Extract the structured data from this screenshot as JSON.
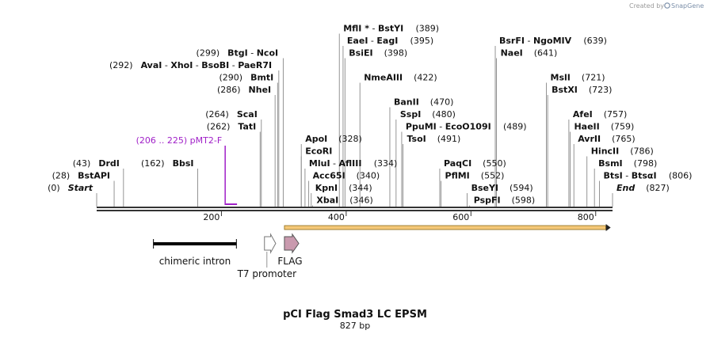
{
  "credit": {
    "prefix": "Created by",
    "brand": "SnapGene"
  },
  "map": {
    "title": "pCI Flag Smad3 LC EPSM",
    "length_label": "827 bp",
    "length": 827,
    "tick_labels": [
      "200",
      "400",
      "600",
      "800"
    ],
    "ticks": [
      200,
      400,
      600,
      800
    ]
  },
  "sites": [
    {
      "pos": 0,
      "row": 0,
      "number": "(0)",
      "names": [
        {
          "t": "Start",
          "s": "italic"
        }
      ],
      "numFirst": true
    },
    {
      "pos": 28,
      "row": 1,
      "number": "(28)",
      "names": [
        {
          "t": "BstAPI",
          "s": "bold"
        }
      ],
      "numFirst": true
    },
    {
      "pos": 43,
      "row": 2,
      "number": "(43)",
      "names": [
        {
          "t": "DrdI",
          "s": "bold"
        }
      ],
      "numFirst": true
    },
    {
      "pos": 162,
      "row": 2,
      "number": "(162)",
      "names": [
        {
          "t": "BbsI",
          "s": "bold"
        }
      ],
      "numFirst": true
    },
    {
      "pos": 262,
      "row": 5,
      "number": "(262)",
      "names": [
        {
          "t": "TatI",
          "s": "bold"
        }
      ],
      "numFirst": true
    },
    {
      "pos": 264,
      "row": 6,
      "number": "(264)",
      "names": [
        {
          "t": "ScaI",
          "s": "bold"
        }
      ],
      "numFirst": true
    },
    {
      "pos": 286,
      "row": 8,
      "number": "(286)",
      "names": [
        {
          "t": "NheI",
          "s": "bold"
        }
      ],
      "numFirst": true
    },
    {
      "pos": 290,
      "row": 9,
      "number": "(290)",
      "names": [
        {
          "t": "BmtI",
          "s": "bold"
        }
      ],
      "numFirst": true
    },
    {
      "pos": 292,
      "row": 10,
      "number": "(292)",
      "names": [
        {
          "t": "AvaI",
          "s": "bold"
        },
        {
          "t": "XhoI",
          "s": "bold"
        },
        {
          "t": "BsoBI",
          "s": "bold"
        },
        {
          "t": "PaeR7I",
          "s": "bold"
        }
      ],
      "numFirst": true
    },
    {
      "pos": 299,
      "row": 11,
      "number": "(299)",
      "names": [
        {
          "t": "BtgI",
          "s": "bold"
        },
        {
          "t": "NcoI",
          "s": "bold"
        }
      ],
      "numFirst": true
    },
    {
      "pos": 328,
      "row": 4,
      "number": "(328)",
      "names": [
        {
          "t": "ApoI",
          "s": "bold"
        }
      ],
      "numFirst": false
    },
    {
      "pos": 328,
      "row": 3,
      "number": "",
      "names": [
        {
          "t": "EcoRI",
          "s": "bold"
        }
      ],
      "numFirst": false
    },
    {
      "pos": 334,
      "row": 2,
      "number": "(334)",
      "names": [
        {
          "t": "MluI",
          "s": "bold"
        },
        {
          "t": "AflIII",
          "s": "bold"
        }
      ],
      "numFirst": false
    },
    {
      "pos": 340,
      "row": 1,
      "number": "(340)",
      "names": [
        {
          "t": "Acc65I",
          "s": "bold"
        }
      ],
      "numFirst": false
    },
    {
      "pos": 344,
      "row": 0,
      "number": "(344)",
      "names": [
        {
          "t": "KpnI",
          "s": "bold"
        }
      ],
      "numFirst": false
    },
    {
      "pos": 346,
      "row": -1,
      "number": "(346)",
      "names": [
        {
          "t": "XbaI",
          "s": "bold"
        }
      ],
      "numFirst": false
    },
    {
      "pos": 389,
      "row": 13,
      "number": "(389)",
      "names": [
        {
          "t": "MflI *",
          "s": "bold"
        },
        {
          "t": "BstYI",
          "s": "bold"
        }
      ],
      "numFirst": false
    },
    {
      "pos": 395,
      "row": 12,
      "number": "(395)",
      "names": [
        {
          "t": "EaeI",
          "s": "bold"
        },
        {
          "t": "EagI",
          "s": "bold"
        }
      ],
      "numFirst": false
    },
    {
      "pos": 398,
      "row": 11,
      "number": "(398)",
      "names": [
        {
          "t": "BsiEI",
          "s": "bold"
        }
      ],
      "numFirst": false
    },
    {
      "pos": 422,
      "row": 9,
      "number": "(422)",
      "names": [
        {
          "t": "NmeAIII",
          "s": "bold"
        }
      ],
      "numFirst": false
    },
    {
      "pos": 470,
      "row": 7,
      "number": "(470)",
      "names": [
        {
          "t": "BanII",
          "s": "bold"
        }
      ],
      "numFirst": false
    },
    {
      "pos": 480,
      "row": 6,
      "number": "(480)",
      "names": [
        {
          "t": "SspI",
          "s": "bold"
        }
      ],
      "numFirst": false
    },
    {
      "pos": 489,
      "row": 5,
      "number": "(489)",
      "names": [
        {
          "t": "PpuMI",
          "s": "bold"
        },
        {
          "t": "EcoO109I",
          "s": "bold"
        }
      ],
      "numFirst": false
    },
    {
      "pos": 491,
      "row": 4,
      "number": "(491)",
      "names": [
        {
          "t": "TsoI",
          "s": "bold"
        }
      ],
      "numFirst": false
    },
    {
      "pos": 550,
      "row": 2,
      "number": "(550)",
      "names": [
        {
          "t": "PaqCI",
          "s": "bold"
        }
      ],
      "numFirst": false
    },
    {
      "pos": 552,
      "row": 1,
      "number": "(552)",
      "names": [
        {
          "t": "PflMI",
          "s": "bold"
        }
      ],
      "numFirst": false
    },
    {
      "pos": 594,
      "row": 0,
      "number": "(594)",
      "names": [
        {
          "t": "BseYI",
          "s": "bold"
        }
      ],
      "numFirst": false
    },
    {
      "pos": 598,
      "row": -1,
      "number": "(598)",
      "names": [
        {
          "t": "PspFI",
          "s": "bold"
        }
      ],
      "numFirst": false
    },
    {
      "pos": 639,
      "row": 12,
      "number": "(639)",
      "names": [
        {
          "t": "BsrFI",
          "s": "bold"
        },
        {
          "t": "NgoMIV",
          "s": "bold"
        }
      ],
      "numFirst": false
    },
    {
      "pos": 641,
      "row": 11,
      "number": "(641)",
      "names": [
        {
          "t": "NaeI",
          "s": "bold"
        }
      ],
      "numFirst": false
    },
    {
      "pos": 721,
      "row": 9,
      "number": "(721)",
      "names": [
        {
          "t": "MslI",
          "s": "bold"
        }
      ],
      "numFirst": false
    },
    {
      "pos": 723,
      "row": 8,
      "number": "(723)",
      "names": [
        {
          "t": "BstXI",
          "s": "bold"
        }
      ],
      "numFirst": false
    },
    {
      "pos": 757,
      "row": 6,
      "number": "(757)",
      "names": [
        {
          "t": "AfeI",
          "s": "bold"
        }
      ],
      "numFirst": false
    },
    {
      "pos": 759,
      "row": 5,
      "number": "(759)",
      "names": [
        {
          "t": "HaeII",
          "s": "bold"
        }
      ],
      "numFirst": false
    },
    {
      "pos": 765,
      "row": 4,
      "number": "(765)",
      "names": [
        {
          "t": "AvrII",
          "s": "bold"
        }
      ],
      "numFirst": false
    },
    {
      "pos": 786,
      "row": 3,
      "number": "(786)",
      "names": [
        {
          "t": "HincII",
          "s": "bold"
        }
      ],
      "numFirst": false
    },
    {
      "pos": 798,
      "row": 2,
      "number": "(798)",
      "names": [
        {
          "t": "BsmI",
          "s": "bold"
        }
      ],
      "numFirst": false
    },
    {
      "pos": 806,
      "row": 1,
      "number": "(806)",
      "names": [
        {
          "t": "BtsI",
          "s": "bold"
        },
        {
          "t": "BtsαI",
          "s": "bold"
        }
      ],
      "numFirst": false
    },
    {
      "pos": 827,
      "row": 0,
      "number": "(827)",
      "names": [
        {
          "t": "End",
          "s": "italic"
        }
      ],
      "numFirst": false
    }
  ],
  "primer": {
    "label": "pMT2-F",
    "range": "(206 .. 225)",
    "start": 206,
    "end": 225,
    "color": "#a020c8"
  },
  "features": [
    {
      "id": "chimeric-intron",
      "label": "chimeric intron",
      "kind": "bar",
      "start": 91,
      "end": 224,
      "color": "#000000"
    },
    {
      "id": "t7-promoter",
      "label": "T7 promoter",
      "kind": "arrow",
      "start": 269,
      "end": 287,
      "color": "#ffffff",
      "stroke": "#777777"
    },
    {
      "id": "flag",
      "label": "FLAG",
      "kind": "arrow",
      "start": 301,
      "end": 324,
      "color": "#c99aae",
      "stroke": "#555555"
    }
  ],
  "orf": {
    "start": 301,
    "end": 824,
    "color": "#f5c878",
    "stroke": "#8a6a1a"
  },
  "colors": {
    "backbone": "#333333",
    "leader": "#7a7a7a",
    "brand": "#7a8ea8"
  }
}
